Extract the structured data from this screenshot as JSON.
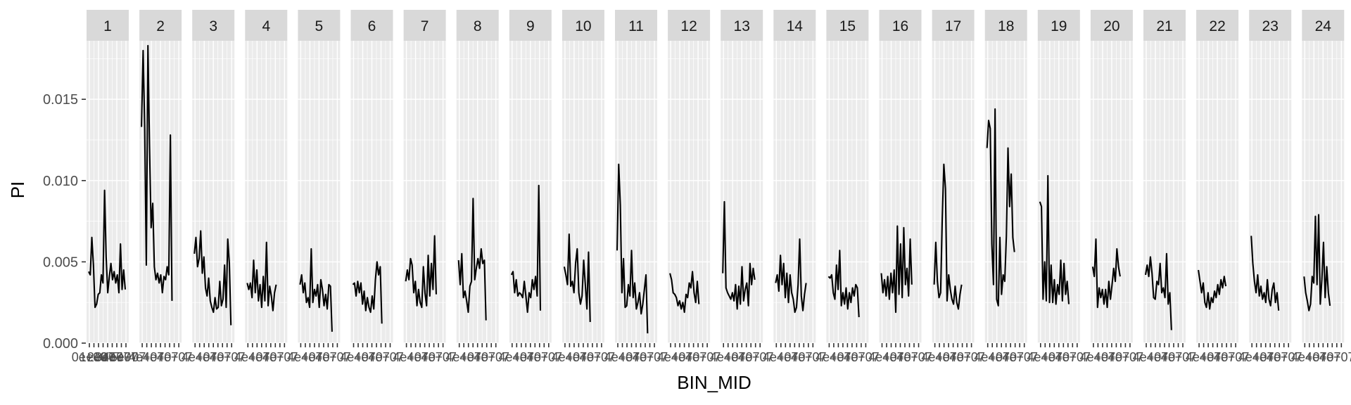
{
  "chart_data": {
    "type": "line",
    "faceted": true,
    "xlabel": "BIN_MID",
    "ylabel": "PI",
    "ylim": [
      0,
      0.0186
    ],
    "yticks": [
      {
        "value": 0.0,
        "label": "0.000"
      },
      {
        "value": 0.005,
        "label": "0.005"
      },
      {
        "value": 0.01,
        "label": "0.010"
      },
      {
        "value": 0.015,
        "label": "0.015"
      }
    ],
    "xtick_labels_first_panel": [
      "0e+00",
      "1e+07",
      "2e+07",
      "3e+07",
      "4e+07",
      "5e+07"
    ],
    "xtick_labels_overlapping": "4e+07",
    "grid": true,
    "panels": [
      {
        "label": "1",
        "values": [
          0.0044,
          0.0042,
          0.0065,
          0.0048,
          0.0022,
          0.0024,
          0.003,
          0.0031,
          0.0042,
          0.0037,
          0.0094,
          0.0053,
          0.0031,
          0.0041,
          0.0049,
          0.0039,
          0.0044,
          0.0037,
          0.0042,
          0.0031,
          0.0061,
          0.0033,
          0.0045,
          0.0033
        ]
      },
      {
        "label": "2",
        "values": [
          0.0133,
          0.018,
          0.0132,
          0.0048,
          0.0183,
          0.0121,
          0.0071,
          0.0086,
          0.0047,
          0.0039,
          0.0043,
          0.0037,
          0.0042,
          0.0031,
          0.0041,
          0.0039,
          0.0047,
          0.0042,
          0.0128,
          0.0026
        ]
      },
      {
        "label": "3",
        "values": [
          0.0055,
          0.0065,
          0.0047,
          0.0052,
          0.0069,
          0.0043,
          0.0053,
          0.0034,
          0.0029,
          0.004,
          0.0026,
          0.0022,
          0.0019,
          0.0028,
          0.0021,
          0.0022,
          0.0038,
          0.0023,
          0.0027,
          0.0048,
          0.0022,
          0.0064,
          0.0049,
          0.0011
        ]
      },
      {
        "label": "4",
        "values": [
          0.0037,
          0.0033,
          0.0037,
          0.0028,
          0.0051,
          0.0031,
          0.0045,
          0.0026,
          0.0036,
          0.0022,
          0.0041,
          0.0026,
          0.0062,
          0.0023,
          0.0035,
          0.0029,
          0.002,
          0.0031,
          0.0036
        ]
      },
      {
        "label": "5",
        "values": [
          0.0036,
          0.0042,
          0.0031,
          0.0037,
          0.0025,
          0.0028,
          0.0022,
          0.0058,
          0.0025,
          0.0033,
          0.0029,
          0.0036,
          0.0022,
          0.0039,
          0.0033,
          0.0023,
          0.003,
          0.0021,
          0.0036,
          0.0035,
          0.0007
        ]
      },
      {
        "label": "6",
        "values": [
          0.0036,
          0.0037,
          0.0029,
          0.0038,
          0.0031,
          0.0037,
          0.0024,
          0.0032,
          0.002,
          0.0028,
          0.0022,
          0.0019,
          0.0029,
          0.0021,
          0.0039,
          0.005,
          0.0042,
          0.0047,
          0.0012
        ]
      },
      {
        "label": "7",
        "values": [
          0.0038,
          0.0045,
          0.0039,
          0.0052,
          0.0048,
          0.0031,
          0.0038,
          0.0023,
          0.0033,
          0.0025,
          0.0022,
          0.0047,
          0.0031,
          0.0023,
          0.0054,
          0.0029,
          0.0049,
          0.0033,
          0.0066,
          0.003
        ]
      },
      {
        "label": "8",
        "values": [
          0.0051,
          0.0036,
          0.0055,
          0.0028,
          0.0032,
          0.0026,
          0.0019,
          0.0035,
          0.0038,
          0.0089,
          0.0039,
          0.0046,
          0.0052,
          0.0046,
          0.0058,
          0.0049,
          0.0051,
          0.0014
        ]
      },
      {
        "label": "9",
        "values": [
          0.0042,
          0.0044,
          0.0031,
          0.0039,
          0.0029,
          0.0031,
          0.003,
          0.0028,
          0.0038,
          0.0029,
          0.0019,
          0.0031,
          0.0028,
          0.0039,
          0.0033,
          0.0041,
          0.0029,
          0.0097,
          0.002
        ]
      },
      {
        "label": "10",
        "values": [
          0.0047,
          0.0042,
          0.0036,
          0.0067,
          0.0035,
          0.0038,
          0.0031,
          0.0049,
          0.0058,
          0.0031,
          0.0024,
          0.0029,
          0.0051,
          0.0036,
          0.0021,
          0.0056,
          0.0013
        ]
      },
      {
        "label": "11",
        "values": [
          0.0057,
          0.011,
          0.0085,
          0.0031,
          0.0052,
          0.0022,
          0.0023,
          0.0036,
          0.0029,
          0.0057,
          0.0028,
          0.0037,
          0.0021,
          0.0025,
          0.0031,
          0.0018,
          0.0024,
          0.0033,
          0.0042,
          0.0006
        ]
      },
      {
        "label": "12",
        "values": [
          0.0043,
          0.0039,
          0.0031,
          0.003,
          0.0028,
          0.0023,
          0.0026,
          0.0021,
          0.0025,
          0.0019,
          0.003,
          0.0028,
          0.0037,
          0.0034,
          0.0044,
          0.0031,
          0.0025,
          0.0038,
          0.0024
        ]
      },
      {
        "label": "13",
        "values": [
          0.0043,
          0.0087,
          0.0034,
          0.0031,
          0.0029,
          0.0027,
          0.0031,
          0.0026,
          0.0036,
          0.0021,
          0.0035,
          0.0024,
          0.0047,
          0.0026,
          0.0033,
          0.0037,
          0.0023,
          0.0049,
          0.0036,
          0.0046,
          0.0039
        ]
      },
      {
        "label": "14",
        "values": [
          0.0037,
          0.0042,
          0.0032,
          0.0054,
          0.0036,
          0.0049,
          0.0028,
          0.0043,
          0.0025,
          0.0042,
          0.0031,
          0.0027,
          0.0019,
          0.0022,
          0.0036,
          0.0064,
          0.0029,
          0.002,
          0.003,
          0.0037
        ]
      },
      {
        "label": "15",
        "values": [
          0.0041,
          0.004,
          0.0042,
          0.0031,
          0.0027,
          0.0048,
          0.0033,
          0.0057,
          0.0023,
          0.0031,
          0.0024,
          0.0034,
          0.0021,
          0.0031,
          0.0025,
          0.0034,
          0.0029,
          0.0036,
          0.0034,
          0.0016
        ]
      },
      {
        "label": "16",
        "values": [
          0.0043,
          0.0031,
          0.0039,
          0.0029,
          0.0041,
          0.0027,
          0.0043,
          0.0031,
          0.0045,
          0.0019,
          0.0072,
          0.003,
          0.0061,
          0.0028,
          0.0071,
          0.0036,
          0.0046,
          0.0029,
          0.0064,
          0.0036
        ]
      },
      {
        "label": "17",
        "values": [
          0.0036,
          0.0062,
          0.0038,
          0.0028,
          0.0031,
          0.0076,
          0.011,
          0.0095,
          0.0026,
          0.0042,
          0.0033,
          0.0027,
          0.0024,
          0.0035,
          0.0025,
          0.0021,
          0.003,
          0.0036
        ]
      },
      {
        "label": "18",
        "values": [
          0.012,
          0.0137,
          0.0132,
          0.0061,
          0.0036,
          0.0144,
          0.0027,
          0.0023,
          0.0065,
          0.003,
          0.0042,
          0.0038,
          0.0066,
          0.012,
          0.0084,
          0.0104,
          0.0065,
          0.0056
        ]
      },
      {
        "label": "19",
        "values": [
          0.0087,
          0.0084,
          0.0027,
          0.005,
          0.0026,
          0.0103,
          0.0025,
          0.0048,
          0.0025,
          0.0039,
          0.0024,
          0.0036,
          0.003,
          0.0051,
          0.0026,
          0.0049,
          0.003,
          0.0038,
          0.0024
        ]
      },
      {
        "label": "20",
        "values": [
          0.0047,
          0.0041,
          0.0064,
          0.0022,
          0.0034,
          0.0028,
          0.0033,
          0.0024,
          0.0033,
          0.0022,
          0.0038,
          0.0027,
          0.0036,
          0.0046,
          0.0038,
          0.0058,
          0.0047,
          0.0041
        ]
      },
      {
        "label": "21",
        "values": [
          0.0042,
          0.0048,
          0.0041,
          0.0053,
          0.0043,
          0.0028,
          0.0027,
          0.0038,
          0.0036,
          0.0049,
          0.0031,
          0.0034,
          0.0028,
          0.0055,
          0.0024,
          0.0031,
          0.0008
        ]
      },
      {
        "label": "22",
        "values": [
          0.0045,
          0.0038,
          0.0031,
          0.0037,
          0.0025,
          0.0022,
          0.0031,
          0.0021,
          0.0028,
          0.0025,
          0.0032,
          0.0028,
          0.0036,
          0.003,
          0.0039,
          0.0034,
          0.0041,
          0.0035
        ]
      },
      {
        "label": "23",
        "values": [
          0.0066,
          0.0049,
          0.0038,
          0.0031,
          0.0042,
          0.0029,
          0.0035,
          0.0027,
          0.0031,
          0.0025,
          0.0039,
          0.0027,
          0.0023,
          0.0033,
          0.0037,
          0.0025,
          0.0031,
          0.002
        ]
      },
      {
        "label": "24",
        "values": [
          0.0041,
          0.0031,
          0.0026,
          0.002,
          0.0024,
          0.0041,
          0.0037,
          0.0078,
          0.0036,
          0.0079,
          0.0024,
          0.0039,
          0.0062,
          0.0028,
          0.0047,
          0.0031,
          0.0023
        ]
      }
    ]
  }
}
